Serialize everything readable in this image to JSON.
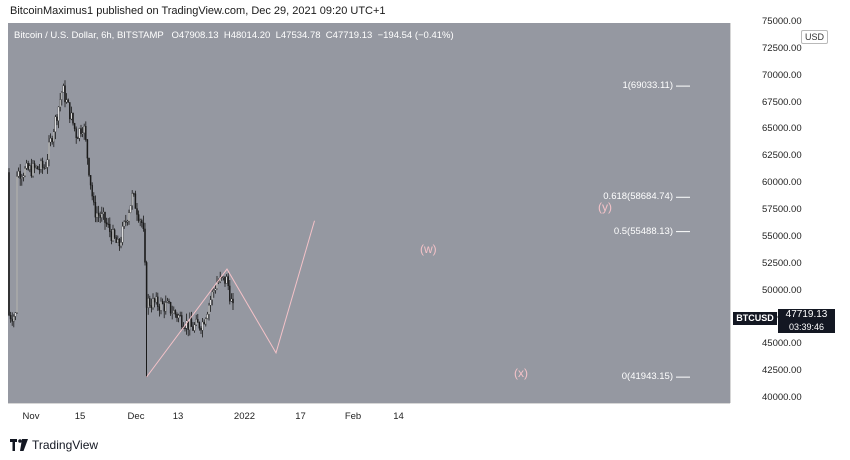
{
  "publish_line": "BitcoinMaximus1 published on TradingView.com, Dec 29, 2021 09:20 UTC+1",
  "header": {
    "symbol": "Bitcoin / U.S. Dollar, 6h, BITSTAMP",
    "o_label": "O",
    "o_value": "47908.13",
    "h_label": "H",
    "h_value": "48014.20",
    "l_label": "L",
    "l_value": "47534.78",
    "c_label": "C",
    "c_value": "47719.13",
    "change": "−194.54 (−0.41%)"
  },
  "axis": {
    "currency": "USD",
    "y_ticks": [
      "75000.00",
      "72500.00",
      "70000.00",
      "67500.00",
      "65000.00",
      "62500.00",
      "60000.00",
      "57500.00",
      "55000.00",
      "52500.00",
      "50000.00",
      "47500.00",
      "45000.00",
      "42500.00",
      "40000.00"
    ],
    "x_ticks": [
      "Nov",
      "15",
      "Dec",
      "13",
      "2022",
      "17",
      "Feb",
      "14"
    ]
  },
  "price_label": {
    "ticker": "BTCUSD",
    "last": "47719.13",
    "countdown": "03:39:46"
  },
  "fib_levels": [
    {
      "label": "1(69033.11)",
      "value": 69033.11
    },
    {
      "label": "0.618(58684.74)",
      "value": 58684.74
    },
    {
      "label": "0.5(55488.13)",
      "value": 55488.13
    },
    {
      "label": "0(41943.15)",
      "value": 41943.15
    }
  ],
  "wave_labels": {
    "w": "(w)",
    "x": "(x)",
    "y": "(y)"
  },
  "footer": {
    "brand": "TradingView"
  },
  "colors": {
    "plot_bg": "#9598a1",
    "candle": "#1a1a1a",
    "fib_line": "#ffffff",
    "wave_line": "#f4c2c8",
    "wave_label": "#f4c2c8"
  },
  "chart_data": {
    "type": "candlestick",
    "symbol": "BTCUSD",
    "interval": "6h",
    "ylim": [
      40000,
      75000
    ],
    "x_range": [
      "2021-10-28",
      "2022-02-15"
    ],
    "key_points": [
      {
        "date": "2021-10-28",
        "close": 61000
      },
      {
        "date": "2021-11-05",
        "close": 61500
      },
      {
        "date": "2021-11-10",
        "close": 68800
      },
      {
        "date": "2021-11-14",
        "close": 64500
      },
      {
        "date": "2021-11-16",
        "close": 65500
      },
      {
        "date": "2021-11-19",
        "close": 57500
      },
      {
        "date": "2021-11-22",
        "close": 56500
      },
      {
        "date": "2021-11-26",
        "close": 54000
      },
      {
        "date": "2021-11-30",
        "close": 58800
      },
      {
        "date": "2021-12-03",
        "close": 56000
      },
      {
        "date": "2021-12-04",
        "close": 49000
      },
      {
        "date": "2021-12-10",
        "close": 48500
      },
      {
        "date": "2021-12-17",
        "close": 46500
      },
      {
        "date": "2021-12-20",
        "close": 47000
      },
      {
        "date": "2021-12-24",
        "close": 50800
      },
      {
        "date": "2021-12-27",
        "close": 51000
      },
      {
        "date": "2021-12-29",
        "close": 47719.13
      }
    ],
    "wave_path": [
      {
        "date": "2021-12-04",
        "price": 41943.15
      },
      {
        "date": "2021-12-27",
        "price": 52000
      },
      {
        "label": "(x)",
        "date": "2022-01-10",
        "price": 44200
      },
      {
        "label": "(y)",
        "date": "2022-01-21",
        "price": 56500
      }
    ]
  }
}
